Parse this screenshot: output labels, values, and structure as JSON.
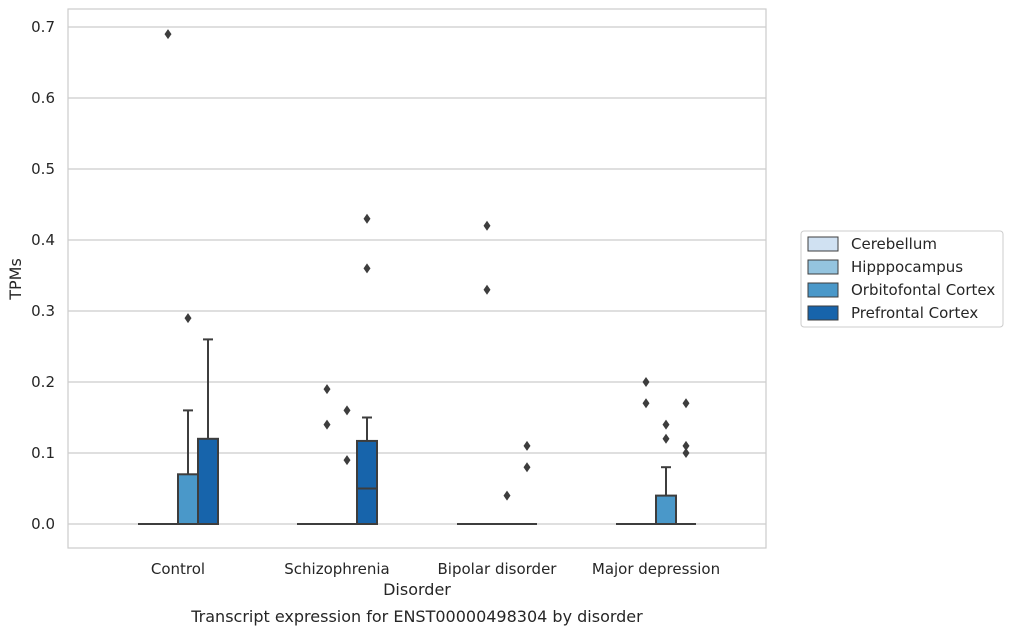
{
  "caption": "Transcript expression for ENST00000498304 by disorder",
  "chart_data": {
    "type": "box",
    "title": "",
    "xlabel": "Disorder",
    "ylabel": "TPMs",
    "categories": [
      "Control",
      "Schizophrenia",
      "Bipolar disorder",
      "Major depression"
    ],
    "ylim": [
      -0.034,
      0.726
    ],
    "yticks": [
      0.0,
      0.1,
      0.2,
      0.3,
      0.4,
      0.5,
      0.6,
      0.7
    ],
    "ytick_labels": [
      "0.0",
      "0.1",
      "0.2",
      "0.3",
      "0.4",
      "0.5",
      "0.6",
      "0.7"
    ],
    "grid": true,
    "legend_position": "right",
    "series": [
      {
        "name": "Cerebellum",
        "color": "#d0e1f2",
        "boxes": [
          {
            "category": "Control",
            "whislo": 0,
            "q1": 0,
            "med": 0,
            "q3": 0,
            "whishi": 0,
            "fliers": []
          },
          {
            "category": "Schizophrenia",
            "whislo": 0,
            "q1": 0,
            "med": 0,
            "q3": 0,
            "whishi": 0,
            "fliers": []
          },
          {
            "category": "Bipolar disorder",
            "whislo": 0,
            "q1": 0,
            "med": 0,
            "q3": 0,
            "whishi": 0,
            "fliers": []
          },
          {
            "category": "Major depression",
            "whislo": 0,
            "q1": 0,
            "med": 0,
            "q3": 0,
            "whishi": 0,
            "fliers": []
          }
        ]
      },
      {
        "name": "Hipppocampus",
        "color": "#94c4df",
        "boxes": [
          {
            "category": "Control",
            "whislo": 0,
            "q1": 0,
            "med": 0,
            "q3": 0,
            "whishi": 0,
            "fliers": [
              0.69
            ]
          },
          {
            "category": "Schizophrenia",
            "whislo": 0,
            "q1": 0,
            "med": 0,
            "q3": 0,
            "whishi": 0,
            "fliers": [
              0.19,
              0.14
            ]
          },
          {
            "category": "Bipolar disorder",
            "whislo": 0,
            "q1": 0,
            "med": 0,
            "q3": 0,
            "whishi": 0,
            "fliers": [
              0.42,
              0.33
            ]
          },
          {
            "category": "Major depression",
            "whislo": 0,
            "q1": 0,
            "med": 0,
            "q3": 0,
            "whishi": 0,
            "fliers": [
              0.2,
              0.17
            ]
          }
        ]
      },
      {
        "name": "Orbitofontal Cortex",
        "color": "#4a98c9",
        "boxes": [
          {
            "category": "Control",
            "whislo": 0,
            "q1": 0,
            "med": 0,
            "q3": 0.07,
            "whishi": 0.16,
            "fliers": [
              0.29
            ]
          },
          {
            "category": "Schizophrenia",
            "whislo": 0,
            "q1": 0,
            "med": 0,
            "q3": 0,
            "whishi": 0,
            "fliers": [
              0.16,
              0.09
            ]
          },
          {
            "category": "Bipolar disorder",
            "whislo": 0,
            "q1": 0,
            "med": 0,
            "q3": 0,
            "whishi": 0,
            "fliers": [
              0.04
            ]
          },
          {
            "category": "Major depression",
            "whislo": 0,
            "q1": 0,
            "med": 0,
            "q3": 0.04,
            "whishi": 0.08,
            "fliers": [
              0.14,
              0.12
            ]
          }
        ]
      },
      {
        "name": "Prefrontal Cortex",
        "color": "#1764ab",
        "boxes": [
          {
            "category": "Control",
            "whislo": 0,
            "q1": 0,
            "med": 0,
            "q3": 0.12,
            "whishi": 0.26,
            "fliers": []
          },
          {
            "category": "Schizophrenia",
            "whislo": 0,
            "q1": 0,
            "med": 0.05,
            "q3": 0.117,
            "whishi": 0.15,
            "fliers": [
              0.43,
              0.36
            ]
          },
          {
            "category": "Bipolar disorder",
            "whislo": 0,
            "q1": 0,
            "med": 0,
            "q3": 0,
            "whishi": 0,
            "fliers": [
              0.11,
              0.08
            ]
          },
          {
            "category": "Major depression",
            "whislo": 0,
            "q1": 0,
            "med": 0,
            "q3": 0,
            "whishi": 0,
            "fliers": [
              0.17,
              0.11,
              0.1
            ]
          }
        ]
      }
    ]
  }
}
